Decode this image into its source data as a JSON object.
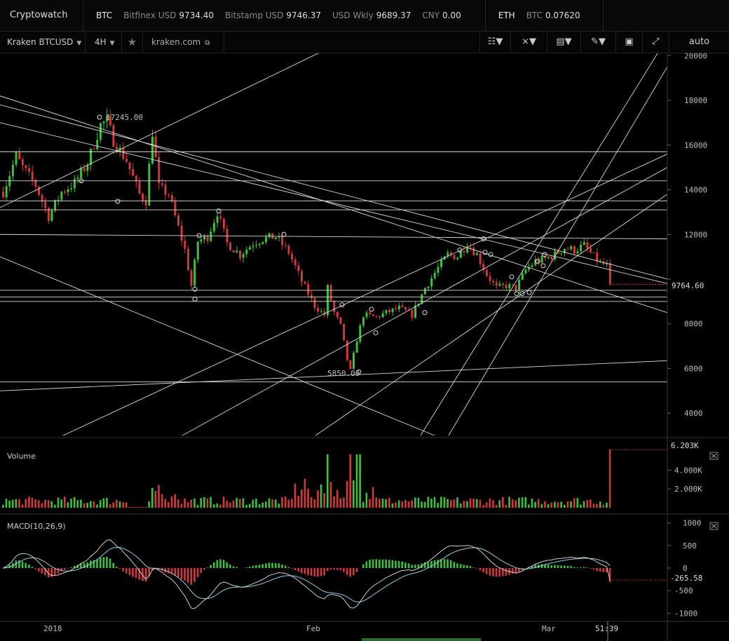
{
  "app": {
    "title": "Cryptowatch"
  },
  "tickers": {
    "btc": {
      "symbol": "BTC",
      "items": [
        {
          "name": "Bitfinex USD",
          "value": "9734.40"
        },
        {
          "name": "Bitstamp USD",
          "value": "9746.37"
        },
        {
          "name": "USD Wkly",
          "value": "9689.37"
        },
        {
          "name": "CNY",
          "value": "0.00"
        }
      ]
    },
    "eth": {
      "symbol": "ETH",
      "items": [
        {
          "name": "BTC",
          "value": "0.07620"
        }
      ]
    }
  },
  "toolbar": {
    "market": "Kraken BTCUSD",
    "interval": "4H",
    "link": "kraken.com",
    "scale": "auto"
  },
  "chart_data": [
    {
      "type": "candlestick",
      "title": "Kraken BTCUSD 4H",
      "ylim": [
        3000,
        20200
      ],
      "yticks": [
        4000,
        6000,
        8000,
        10000,
        12000,
        14000,
        16000,
        18000,
        20000
      ],
      "ytick_labels": [
        "4000",
        "6000",
        "8000",
        "",
        "12000",
        "14000",
        "16000",
        "18000",
        "20000"
      ],
      "last_price": 9764.6,
      "last_price_label": "9764.60",
      "high_label": "17245.00",
      "low_label": "5850.00",
      "x_labels": [
        "2018",
        "Feb",
        "Mar",
        "51:39"
      ],
      "bull_color": "#3fbf3f",
      "bear_color": "#d03a3a",
      "price_path": [
        [
          0,
          13900
        ],
        [
          4,
          15500
        ],
        [
          6,
          15000
        ],
        [
          10,
          14200
        ],
        [
          14,
          12800
        ],
        [
          18,
          13900
        ],
        [
          22,
          14300
        ],
        [
          26,
          15200
        ],
        [
          30,
          16900
        ],
        [
          32,
          17100
        ],
        [
          34,
          16200
        ],
        [
          38,
          15300
        ],
        [
          42,
          13800
        ],
        [
          44,
          13500
        ],
        [
          46,
          16600
        ],
        [
          48,
          14100
        ],
        [
          51,
          13800
        ],
        [
          56,
          11300
        ],
        [
          58,
          9700
        ],
        [
          60,
          11700
        ],
        [
          63,
          11900
        ],
        [
          66,
          13000
        ],
        [
          69,
          11600
        ],
        [
          73,
          11100
        ],
        [
          77,
          11600
        ],
        [
          80,
          11800
        ],
        [
          84,
          11900
        ],
        [
          88,
          11200
        ],
        [
          92,
          9900
        ],
        [
          96,
          8800
        ],
        [
          99,
          8400
        ],
        [
          100,
          9600
        ],
        [
          102,
          8500
        ],
        [
          104,
          7900
        ],
        [
          106,
          6400
        ],
        [
          107,
          5900
        ],
        [
          109,
          7300
        ],
        [
          111,
          8400
        ],
        [
          115,
          8300
        ],
        [
          118,
          8500
        ],
        [
          122,
          8700
        ],
        [
          126,
          8400
        ],
        [
          130,
          9600
        ],
        [
          134,
          10500
        ],
        [
          137,
          11100
        ],
        [
          140,
          11000
        ],
        [
          143,
          11600
        ],
        [
          146,
          11100
        ],
        [
          149,
          10200
        ],
        [
          152,
          9600
        ],
        [
          155,
          9700
        ],
        [
          158,
          9600
        ],
        [
          161,
          10400
        ],
        [
          164,
          10800
        ],
        [
          167,
          10900
        ],
        [
          170,
          11100
        ],
        [
          173,
          11400
        ],
        [
          176,
          11300
        ],
        [
          179,
          11500
        ],
        [
          182,
          11000
        ],
        [
          184,
          10700
        ],
        [
          186,
          10600
        ],
        [
          187,
          9764
        ]
      ]
    },
    {
      "type": "bar",
      "title": "Volume",
      "ytick_labels": [
        "2.000K",
        "4.000K"
      ],
      "yticks": [
        2000,
        4000
      ],
      "ylim": [
        0,
        6500
      ],
      "last_label": "6.203K",
      "last_value": 6203
    },
    {
      "type": "line",
      "title": "MACD(10,26,9)",
      "ylim": [
        -1150,
        1150
      ],
      "yticks": [
        1000,
        500,
        0,
        -500,
        -1000
      ],
      "ytick_labels": [
        "1000",
        "500",
        "0",
        "-500",
        "-1000"
      ],
      "last_value": -265.58,
      "last_label": "-265.58",
      "series": [
        {
          "name": "MACD",
          "color": "#cfcfcf"
        },
        {
          "name": "Signal",
          "color": "#8fd0e0"
        }
      ]
    }
  ]
}
